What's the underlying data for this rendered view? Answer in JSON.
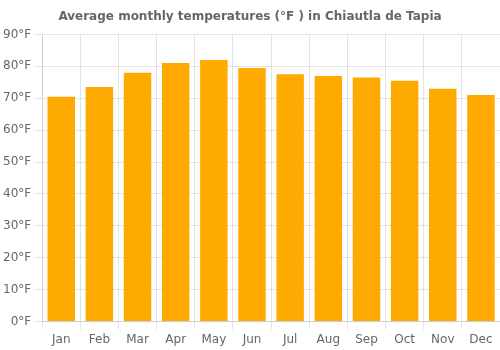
{
  "chart_data": {
    "type": "bar",
    "title": "Average monthly temperatures (°F ) in Chiautla de Tapia",
    "categories": [
      "Jan",
      "Feb",
      "Mar",
      "Apr",
      "May",
      "Jun",
      "Jul",
      "Aug",
      "Sep",
      "Oct",
      "Nov",
      "Dec"
    ],
    "values": [
      70.5,
      73.5,
      78,
      81,
      82,
      79.5,
      77.5,
      77,
      76.5,
      75.5,
      73,
      71
    ],
    "color": "#FFAA00",
    "ylim": [
      0,
      90
    ],
    "yticks": [
      {
        "value": 0,
        "label": "0°F"
      },
      {
        "value": 10,
        "label": "10°F"
      },
      {
        "value": 20,
        "label": "20°F"
      },
      {
        "value": 30,
        "label": "30°F"
      },
      {
        "value": 40,
        "label": "40°F"
      },
      {
        "value": 50,
        "label": "50°F"
      },
      {
        "value": 60,
        "label": "60°F"
      },
      {
        "value": 70,
        "label": "70°F"
      },
      {
        "value": 80,
        "label": "80°F"
      },
      {
        "value": 90,
        "label": "90°F"
      }
    ],
    "grid": true
  }
}
